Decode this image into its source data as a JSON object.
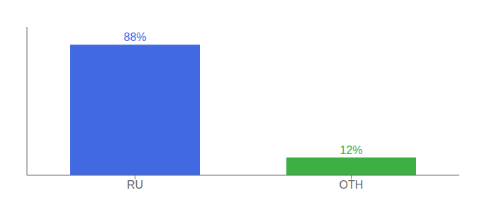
{
  "chart_data": {
    "type": "bar",
    "categories": [
      "RU",
      "OTH"
    ],
    "values": [
      88,
      12
    ],
    "value_labels": [
      "88%",
      "12%"
    ],
    "colors": [
      "#4169e1",
      "#3cb043"
    ],
    "ylim": [
      0,
      100
    ],
    "data_labels": true,
    "tick_labels": "x"
  }
}
